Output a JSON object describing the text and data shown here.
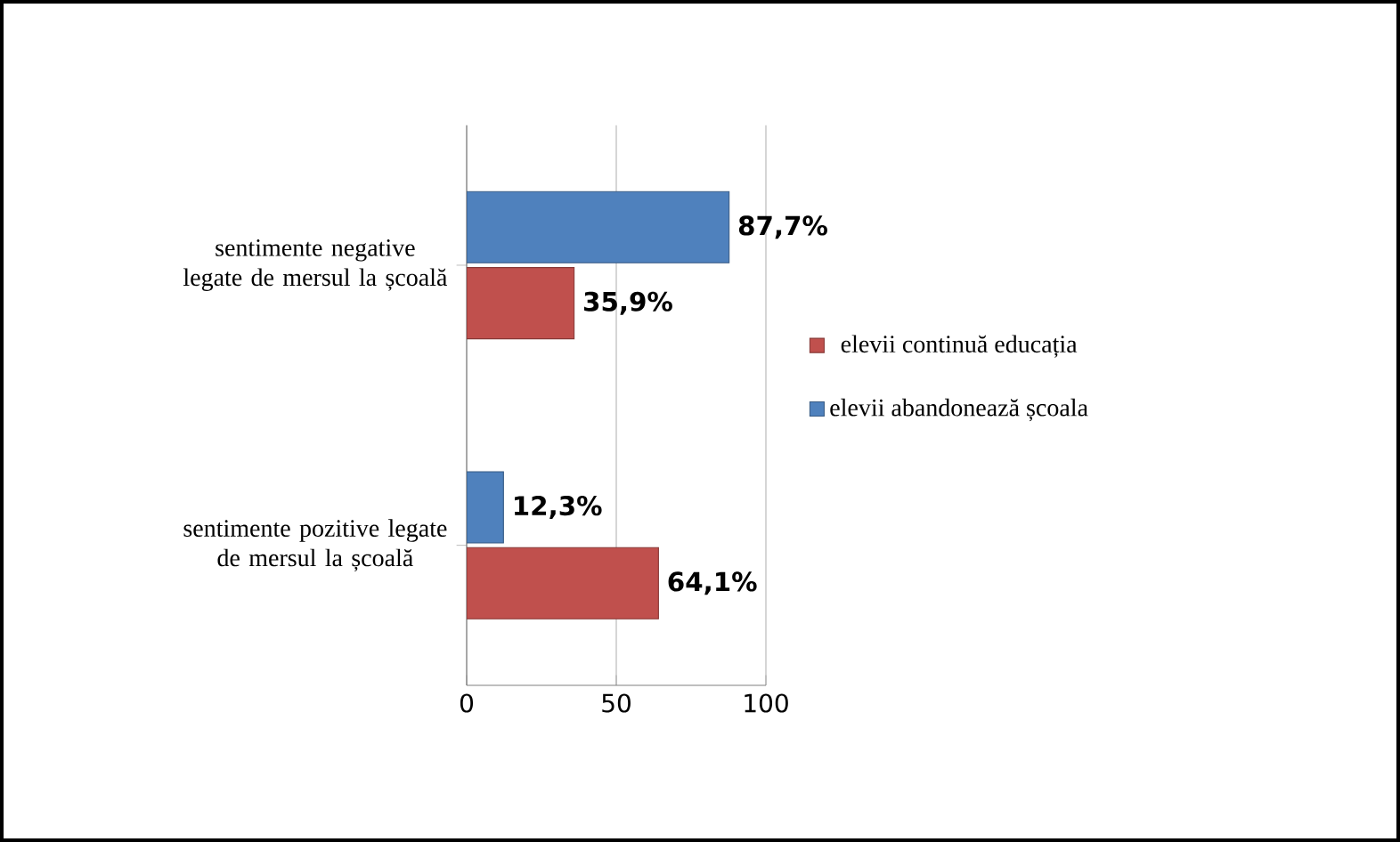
{
  "chart_data": {
    "type": "bar",
    "orientation": "horizontal",
    "categories": [
      "sentimente negative legate de mersul la școală",
      "sentimente pozitive legate de mersul la școală"
    ],
    "series": [
      {
        "name": "elevii continuă educația",
        "color": "#c0504d",
        "values": [
          35.9,
          64.1
        ],
        "value_labels": [
          "35,9%",
          "64,1%"
        ]
      },
      {
        "name": "elevii abandonează școala",
        "color": "#4f81bd",
        "values": [
          87.7,
          12.3
        ],
        "value_labels": [
          "87,7%",
          "12,3%"
        ]
      }
    ],
    "xlim": [
      0,
      100
    ],
    "xticks": [
      0,
      50,
      100
    ],
    "grid": "x",
    "legend": "right"
  }
}
